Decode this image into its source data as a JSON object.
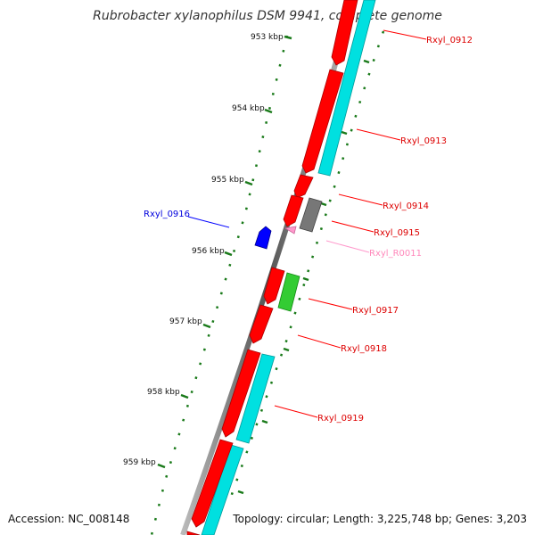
{
  "title": "Rubrobacter xylanophilus DSM 9941, complete genome",
  "footer": {
    "accession": "Accession: NC_008148",
    "summary": "Topology: circular; Length: 3,225,748 bp; Genes: 3,203"
  },
  "colors": {
    "backbone": "#808080",
    "tick": "#1a7a1a",
    "forward_cds": "#ff0000",
    "reverse_cds": "#0000ff",
    "rna": "#ff99cc",
    "pseudo": "#777777",
    "cyan_feature": "#00e0e0",
    "green_feature": "#33cc33"
  },
  "scale": {
    "ticks": [
      {
        "label": "953 kbp"
      },
      {
        "label": "954 kbp"
      },
      {
        "label": "955 kbp"
      },
      {
        "label": "956 kbp"
      },
      {
        "label": "957 kbp"
      },
      {
        "label": "958 kbp"
      },
      {
        "label": "959 kbp"
      }
    ]
  },
  "features": [
    {
      "label": "Rxyl_0912",
      "color": "#ff0000"
    },
    {
      "label": "Rxyl_0913",
      "color": "#ff0000"
    },
    {
      "label": "Rxyl_0914",
      "color": "#ff0000"
    },
    {
      "label": "Rxyl_0915",
      "color": "#ff0000"
    },
    {
      "label": "Rxyl_R0011",
      "color": "#ff99cc"
    },
    {
      "label": "Rxyl_0916",
      "color": "#0000ff"
    },
    {
      "label": "Rxyl_0917",
      "color": "#ff0000"
    },
    {
      "label": "Rxyl_0918",
      "color": "#ff0000"
    },
    {
      "label": "Rxyl_0919",
      "color": "#ff0000"
    }
  ]
}
